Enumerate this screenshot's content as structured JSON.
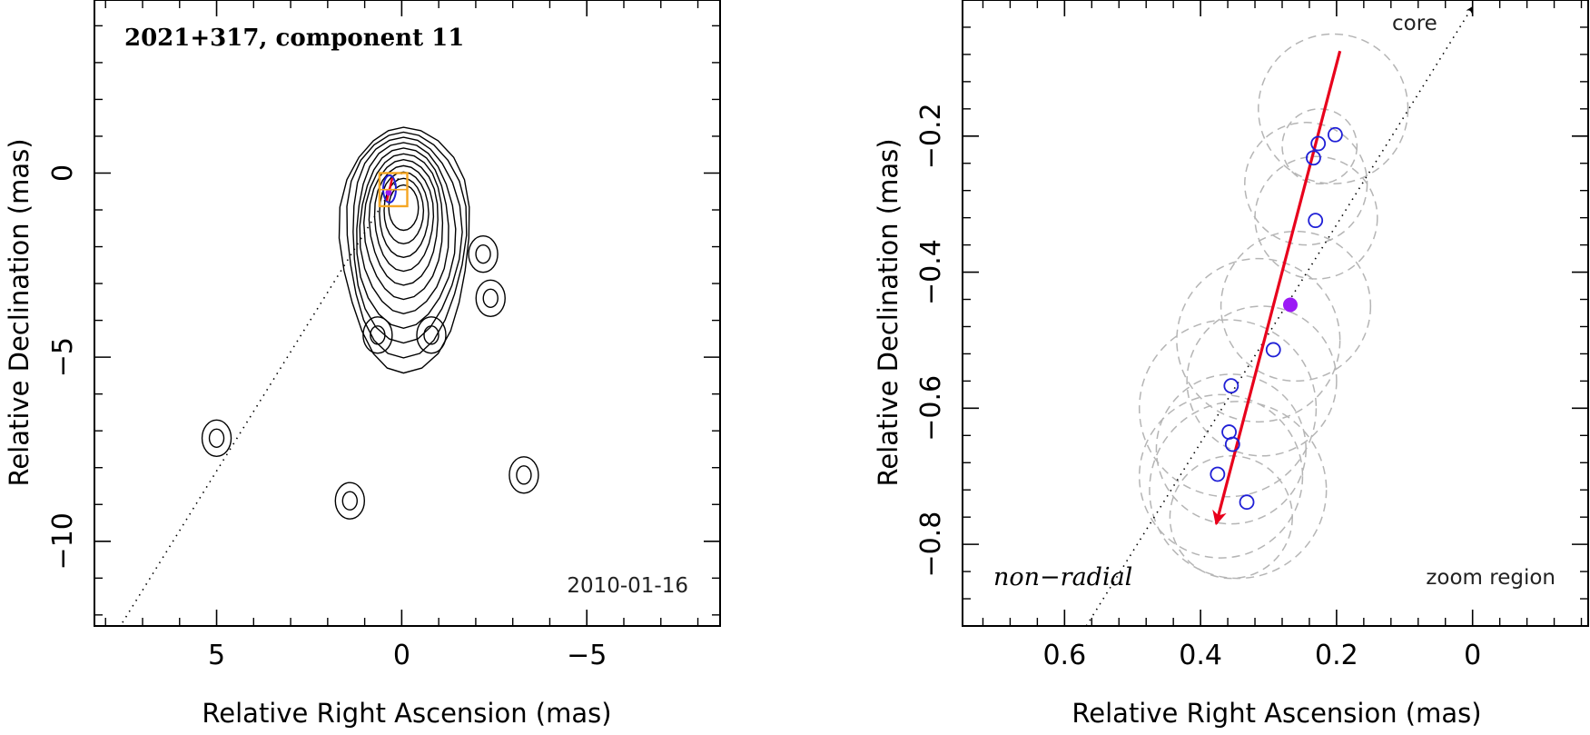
{
  "chart_data": [
    {
      "type": "contour",
      "title": "2021+317, component 11",
      "date": "2010-01-16",
      "xlabel": "Relative Right Ascension (mas)",
      "ylabel": "Relative Declination (mas)",
      "xlim": [
        8.3,
        -8.6
      ],
      "ylim": [
        -12.3,
        4.7
      ],
      "x_reversed": true,
      "xticks": [
        5,
        0,
        -5
      ],
      "xtick_labels": [
        "5",
        "0",
        "−5"
      ],
      "yticks": [
        0,
        -5,
        -10
      ],
      "ytick_labels": [
        "0",
        "−5",
        "−10"
      ],
      "core_direction_line": {
        "from": [
          0,
          0
        ],
        "to": [
          7.6,
          -12.3
        ]
      },
      "main_contours": {
        "center": [
          -0.05,
          -0.9
        ],
        "levels": 11
      },
      "secondary_contours": [
        {
          "center": [
            -2.2,
            -2.2
          ]
        },
        {
          "center": [
            -2.4,
            -3.4
          ]
        },
        {
          "center": [
            0.65,
            -4.4
          ]
        },
        {
          "center": [
            -0.8,
            -4.4
          ]
        },
        {
          "center": [
            5.0,
            -7.2
          ]
        },
        {
          "center": [
            -3.3,
            -8.2
          ]
        },
        {
          "center": [
            1.4,
            -8.9
          ]
        }
      ],
      "zoom_box": {
        "x": [
          0.6,
          -0.15
        ],
        "y": [
          -0.9,
          0.0
        ]
      },
      "zoom_box_color": "#f5a623"
    },
    {
      "type": "scatter",
      "label_left": "non−radial",
      "label_right": "zoom region",
      "core_label": "core",
      "xlabel": "Relative Right Ascension (mas)",
      "ylabel": "Relative Declination (mas)",
      "xlim": [
        0.75,
        -0.17
      ],
      "ylim": [
        -0.92,
        0.0
      ],
      "x_reversed": true,
      "xticks": [
        0.6,
        0.4,
        0.2,
        0
      ],
      "xtick_labels": [
        "0.6",
        "0.4",
        "0.2",
        "0"
      ],
      "yticks": [
        -0.2,
        -0.4,
        -0.6,
        -0.8
      ],
      "ytick_labels": [
        "−0.2",
        "−0.4",
        "−0.6",
        "−0.8"
      ],
      "points": [
        {
          "x": 0.202,
          "y": -0.198
        },
        {
          "x": 0.227,
          "y": -0.211
        },
        {
          "x": 0.234,
          "y": -0.232
        },
        {
          "x": 0.231,
          "y": -0.324
        },
        {
          "x": 0.293,
          "y": -0.514
        },
        {
          "x": 0.355,
          "y": -0.567
        },
        {
          "x": 0.358,
          "y": -0.635
        },
        {
          "x": 0.353,
          "y": -0.653
        },
        {
          "x": 0.375,
          "y": -0.697
        },
        {
          "x": 0.332,
          "y": -0.738
        }
      ],
      "mean_point": {
        "x": 0.268,
        "y": -0.448
      },
      "fit_vector": {
        "from": [
          0.195,
          -0.075
        ],
        "to": [
          0.377,
          -0.77
        ]
      },
      "core_line": {
        "from": [
          0.568,
          -0.92
        ],
        "to": [
          0.0,
          -0.01
        ]
      },
      "error_circles": [
        {
          "x": 0.205,
          "y": -0.16,
          "r": 0.11
        },
        {
          "x": 0.225,
          "y": -0.215,
          "r": 0.055
        },
        {
          "x": 0.245,
          "y": -0.27,
          "r": 0.09
        },
        {
          "x": 0.23,
          "y": -0.32,
          "r": 0.09
        },
        {
          "x": 0.26,
          "y": -0.45,
          "r": 0.11
        },
        {
          "x": 0.315,
          "y": -0.5,
          "r": 0.12
        },
        {
          "x": 0.31,
          "y": -0.56,
          "r": 0.11
        },
        {
          "x": 0.36,
          "y": -0.6,
          "r": 0.13
        },
        {
          "x": 0.355,
          "y": -0.66,
          "r": 0.11
        },
        {
          "x": 0.37,
          "y": -0.7,
          "r": 0.12
        },
        {
          "x": 0.345,
          "y": -0.72,
          "r": 0.13
        },
        {
          "x": 0.355,
          "y": -0.76,
          "r": 0.09
        }
      ],
      "colors": {
        "points": "#1f1fd6",
        "mean": "#9b19f5",
        "vector": "#e8001c",
        "circles": "#b5b5b5"
      }
    }
  ]
}
